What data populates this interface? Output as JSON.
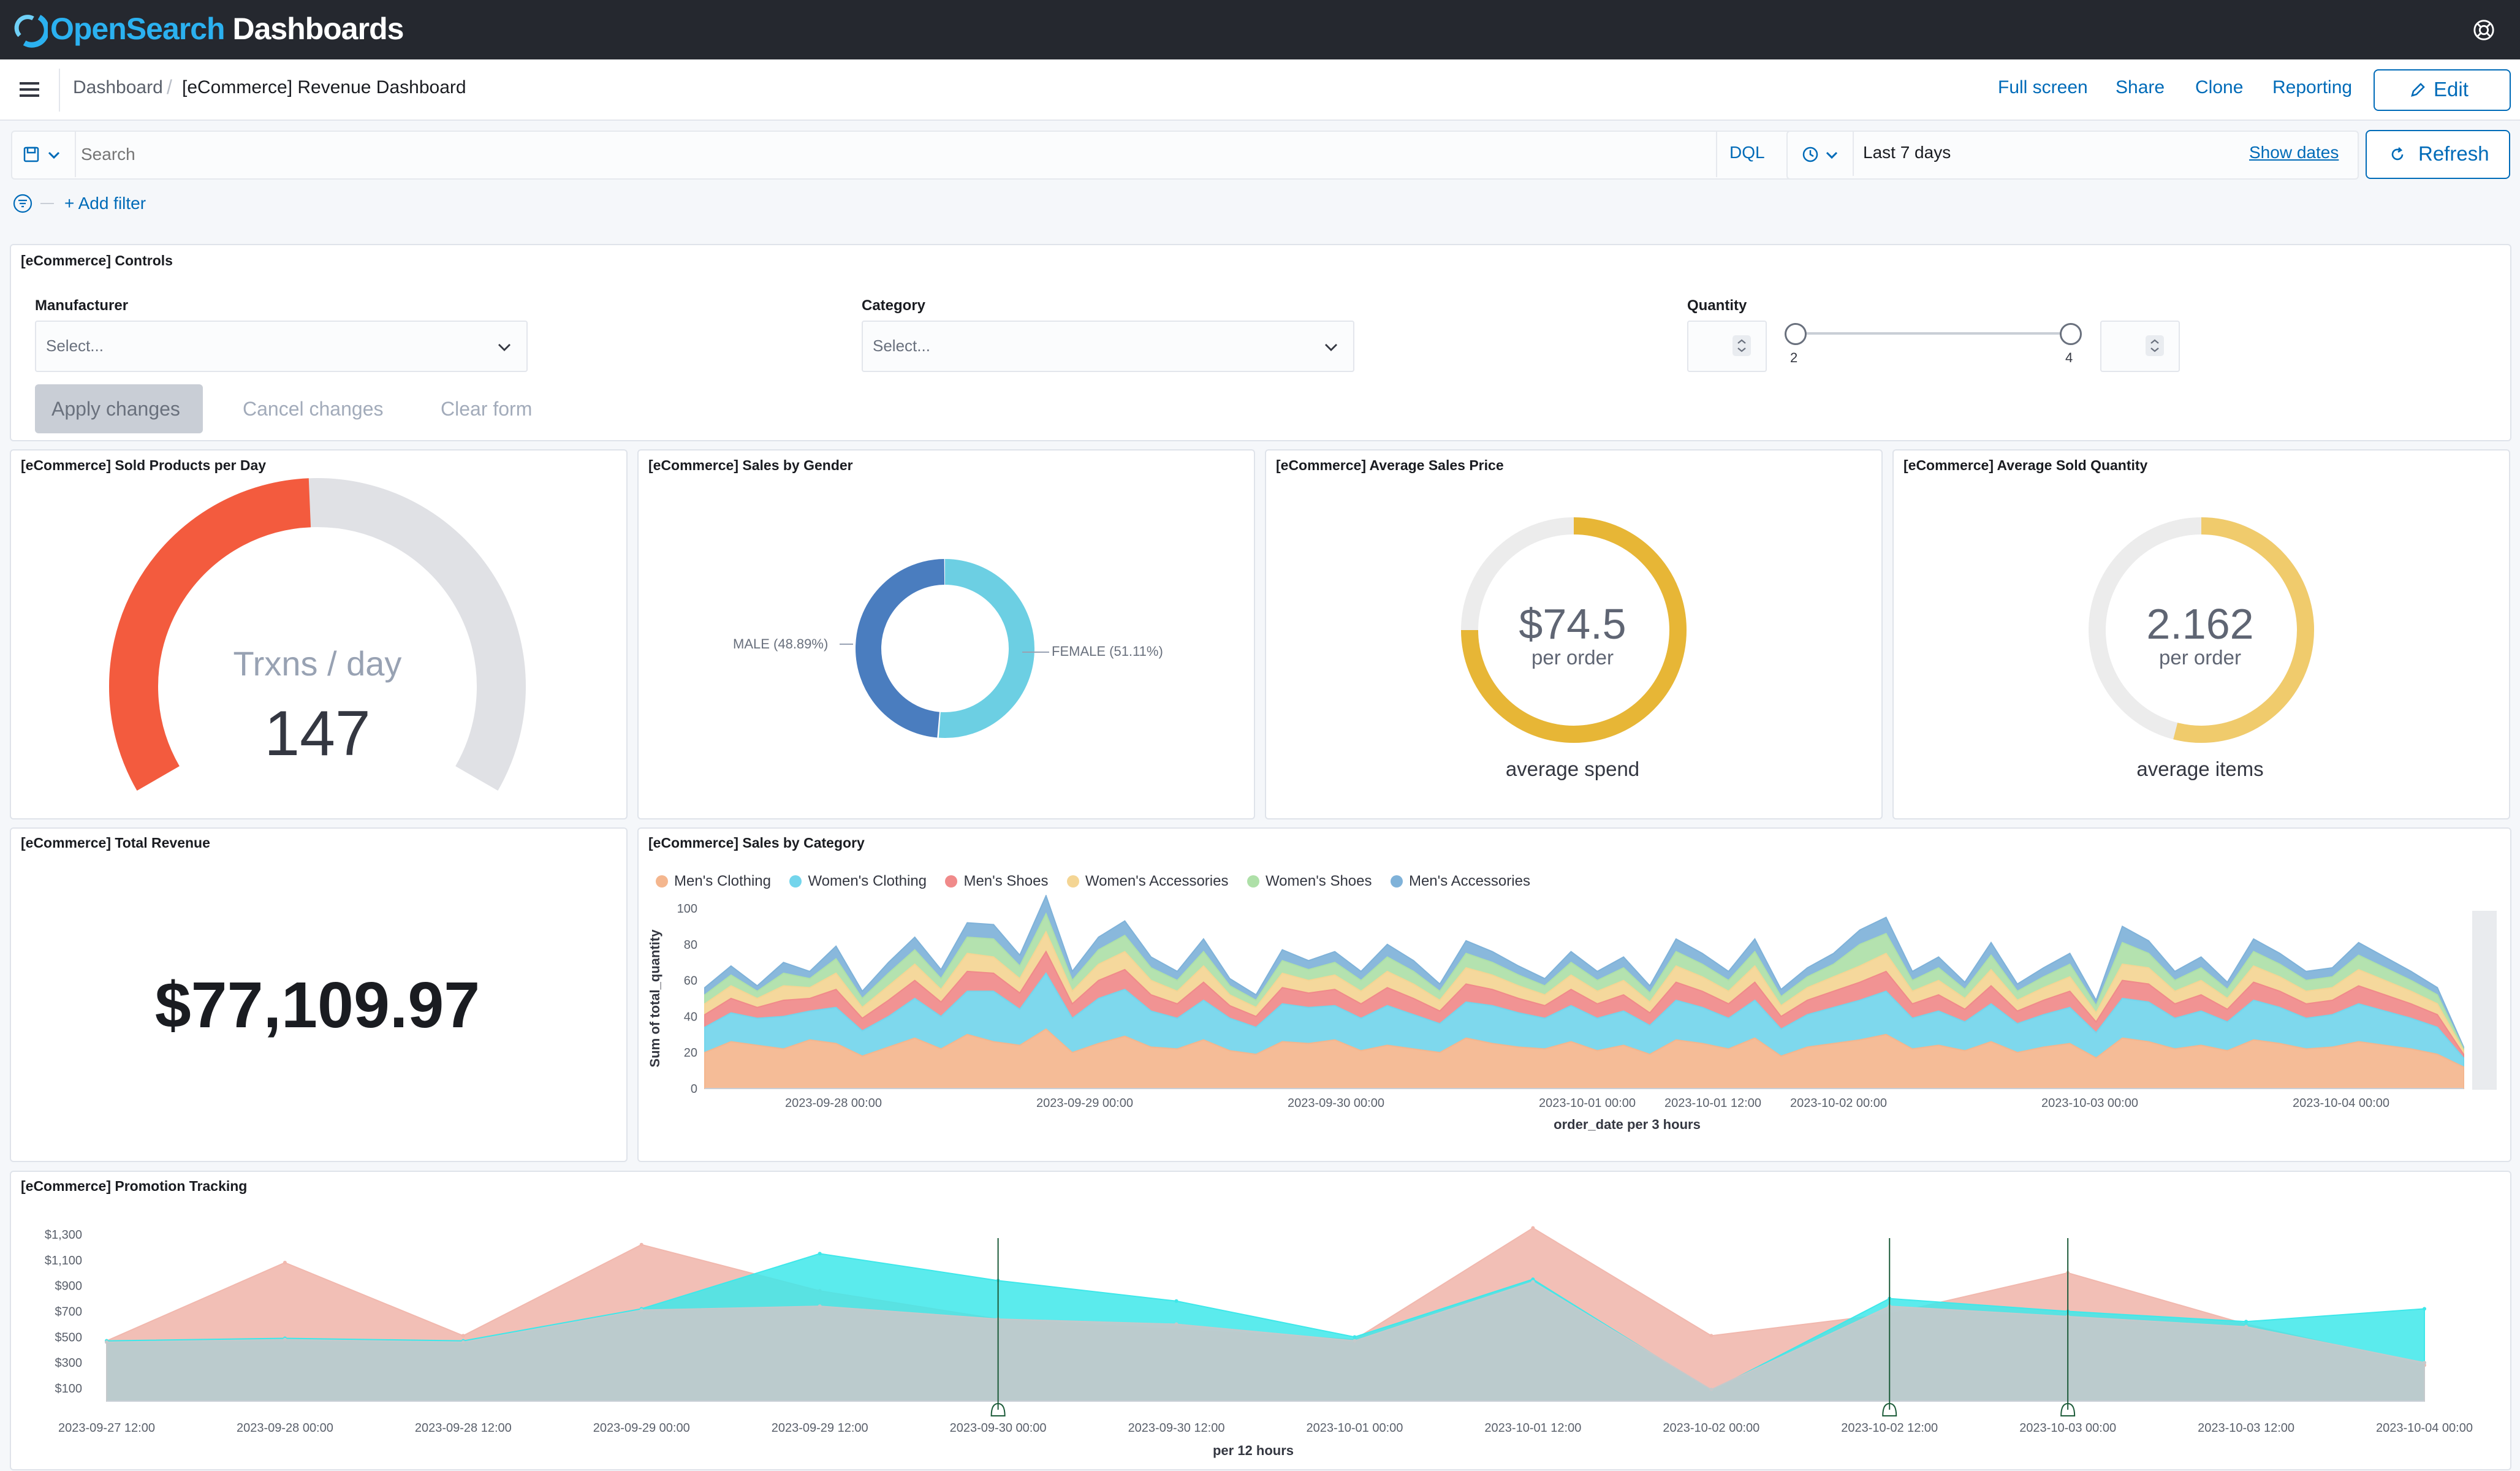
{
  "app": {
    "brand_open": "OpenSearch",
    "brand_dash": " Dashboards"
  },
  "breadcrumbs": [
    "Dashboard",
    "[eCommerce] Revenue Dashboard"
  ],
  "top_nav": {
    "full_screen": "Full screen",
    "share": "Share",
    "clone": "Clone",
    "reporting": "Reporting",
    "edit": "Edit"
  },
  "query": {
    "search_placeholder": "Search",
    "language": "DQL",
    "time_range": "Last 7 days",
    "show_dates": "Show dates",
    "refresh": "Refresh",
    "add_filter": "+ Add filter"
  },
  "controls": {
    "title": "[eCommerce] Controls",
    "manufacturer_label": "Manufacturer",
    "manufacturer_placeholder": "Select...",
    "category_label": "Category",
    "category_placeholder": "Select...",
    "quantity_label": "Quantity",
    "quantity_min": "2",
    "quantity_max": "4",
    "apply": "Apply changes",
    "cancel": "Cancel changes",
    "clear": "Clear form"
  },
  "sold_per_day": {
    "title": "[eCommerce] Sold Products per Day",
    "label": "Trxns / day",
    "value": "147",
    "gauge_fraction": 0.49,
    "color": "#f35b3e"
  },
  "gender": {
    "title": "[eCommerce] Sales by Gender",
    "male_label": "MALE (48.89%)",
    "female_label": "FEMALE (51.11%)",
    "male_pct": 48.89,
    "female_pct": 51.11,
    "male_color": "#4a7dbf",
    "female_color": "#6ccfe3"
  },
  "avg_price": {
    "title": "[eCommerce] Average Sales Price",
    "value": "$74.5",
    "unit": "per order",
    "caption": "average spend",
    "fraction": 0.75,
    "color": "#e7b636"
  },
  "avg_qty": {
    "title": "[eCommerce] Average Sold Quantity",
    "value": "2.162",
    "unit": "per order",
    "caption": "average items",
    "fraction": 0.54,
    "color": "#f0cb6c"
  },
  "revenue": {
    "title": "[eCommerce] Total Revenue",
    "value": "$77,109.97"
  },
  "category_chart": {
    "title": "[eCommerce] Sales by Category"
  },
  "promo_chart": {
    "title": "[eCommerce] Promotion Tracking"
  },
  "chart_data": [
    {
      "type": "area",
      "title": "[eCommerce] Sales by Category",
      "ylabel": "Sum of total_quantity",
      "xlabel": "order_date per 3 hours",
      "ylim": [
        0,
        100
      ],
      "yticks": [
        "0",
        "20",
        "40",
        "60",
        "80",
        "100"
      ],
      "xtick_labels": [
        "2023-09-28 00:00",
        "2023-09-29 00:00",
        "2023-09-30 00:00",
        "2023-10-01 00:00",
        "2023-10-01 12:00",
        "2023-10-02 00:00",
        "2023-10-03 00:00",
        "2023-10-04 00:00"
      ],
      "legend_position": "top-left",
      "stacked": true,
      "series": [
        {
          "name": "Men's Clothing",
          "color": "#f4b68e",
          "values": [
            20,
            26,
            24,
            22,
            27,
            25,
            18,
            23,
            28,
            22,
            30,
            26,
            24,
            33,
            20,
            25,
            29,
            23,
            22,
            27,
            21,
            19,
            26,
            25,
            27,
            21,
            24,
            22,
            20,
            28,
            25,
            23,
            22,
            26,
            21,
            24,
            19,
            27,
            25,
            22,
            28,
            18,
            23,
            25,
            27,
            30,
            22,
            24,
            21,
            26,
            20,
            23,
            25,
            17,
            28,
            26,
            22,
            24,
            21,
            27,
            25,
            22,
            23,
            26,
            24,
            22,
            19,
            12
          ]
        },
        {
          "name": "Women's Clothing",
          "color": "#73d5ec",
          "values": [
            14,
            16,
            15,
            18,
            16,
            20,
            14,
            17,
            22,
            18,
            24,
            28,
            20,
            31,
            19,
            25,
            26,
            20,
            17,
            22,
            18,
            15,
            21,
            20,
            19,
            18,
            22,
            19,
            16,
            20,
            21,
            19,
            17,
            20,
            18,
            19,
            16,
            22,
            20,
            17,
            21,
            15,
            18,
            20,
            22,
            24,
            17,
            19,
            16,
            21,
            16,
            18,
            20,
            14,
            22,
            22,
            17,
            19,
            16,
            22,
            20,
            17,
            18,
            21,
            19,
            17,
            15,
            5
          ]
        },
        {
          "name": "Men's Shoes",
          "color": "#f08a8a",
          "values": [
            7,
            8,
            6,
            9,
            7,
            10,
            7,
            9,
            10,
            8,
            11,
            10,
            9,
            12,
            8,
            10,
            11,
            9,
            8,
            10,
            7,
            6,
            9,
            8,
            9,
            8,
            10,
            9,
            7,
            10,
            9,
            8,
            7,
            9,
            8,
            9,
            7,
            10,
            9,
            8,
            10,
            7,
            8,
            9,
            10,
            11,
            8,
            9,
            7,
            10,
            7,
            8,
            9,
            6,
            10,
            10,
            8,
            9,
            7,
            10,
            9,
            8,
            8,
            10,
            9,
            8,
            7,
            2
          ]
        },
        {
          "name": "Women's Accessories",
          "color": "#f4d594",
          "values": [
            6,
            7,
            5,
            8,
            6,
            9,
            6,
            8,
            9,
            7,
            10,
            9,
            8,
            11,
            7,
            9,
            10,
            8,
            7,
            9,
            6,
            5,
            8,
            7,
            8,
            7,
            9,
            8,
            6,
            9,
            8,
            7,
            6,
            8,
            7,
            8,
            6,
            9,
            8,
            7,
            9,
            6,
            7,
            8,
            9,
            10,
            7,
            8,
            6,
            9,
            6,
            7,
            8,
            5,
            9,
            9,
            7,
            8,
            6,
            9,
            8,
            7,
            7,
            9,
            8,
            7,
            6,
            2
          ]
        },
        {
          "name": "Women's Shoes",
          "color": "#aee0a8",
          "values": [
            5,
            6,
            4,
            7,
            5,
            8,
            5,
            7,
            8,
            6,
            9,
            10,
            7,
            10,
            6,
            8,
            9,
            7,
            6,
            8,
            5,
            4,
            7,
            6,
            7,
            6,
            8,
            7,
            5,
            8,
            7,
            6,
            5,
            7,
            6,
            7,
            5,
            8,
            7,
            6,
            8,
            5,
            6,
            7,
            12,
            11,
            6,
            7,
            5,
            8,
            5,
            6,
            7,
            4,
            12,
            8,
            6,
            7,
            5,
            8,
            7,
            6,
            6,
            8,
            7,
            6,
            5,
            1
          ]
        },
        {
          "name": "Men's Accessories",
          "color": "#7fb2d9",
          "values": [
            4,
            5,
            3,
            6,
            4,
            7,
            4,
            6,
            7,
            5,
            8,
            8,
            6,
            10,
            5,
            7,
            8,
            6,
            5,
            7,
            4,
            3,
            6,
            5,
            6,
            5,
            7,
            6,
            4,
            7,
            6,
            5,
            4,
            6,
            5,
            6,
            4,
            7,
            6,
            5,
            7,
            4,
            5,
            6,
            8,
            9,
            5,
            6,
            4,
            7,
            4,
            5,
            6,
            3,
            9,
            7,
            5,
            6,
            4,
            7,
            6,
            5,
            5,
            7,
            6,
            5,
            4,
            1
          ]
        }
      ]
    },
    {
      "type": "area",
      "title": "[eCommerce] Promotion Tracking",
      "xlabel": "per 12 hours",
      "yticks": [
        "$100",
        "$300",
        "$500",
        "$700",
        "$900",
        "$1,100",
        "$1,300"
      ],
      "ylim": [
        0,
        1300
      ],
      "x": [
        "2023-09-27 12:00",
        "2023-09-28 00:00",
        "2023-09-28 12:00",
        "2023-09-29 00:00",
        "2023-09-29 12:00",
        "2023-09-30 00:00",
        "2023-09-30 12:00",
        "2023-10-01 00:00",
        "2023-10-01 12:00",
        "2023-10-02 00:00",
        "2023-10-02 12:00",
        "2023-10-03 00:00",
        "2023-10-03 12:00",
        "2023-10-04 00:00"
      ],
      "series": [
        {
          "color": "#f1b8ae",
          "values": [
            470,
            1080,
            510,
            1220,
            860,
            640,
            560,
            480,
            1350,
            510,
            680,
            1000,
            600,
            280
          ]
        },
        {
          "color": "#3ee8ea",
          "values": [
            470,
            490,
            470,
            720,
            1150,
            940,
            780,
            500,
            950,
            80,
            800,
            700,
            620,
            720
          ]
        },
        {
          "color": "#c5c9cb",
          "values": [
            460,
            480,
            460,
            710,
            740,
            640,
            600,
            470,
            930,
            90,
            740,
            660,
            580,
            300
          ]
        }
      ],
      "annotations_x": [
        "2023-09-30 00:00",
        "2023-10-02 12:00",
        "2023-10-03 00:00"
      ]
    }
  ]
}
